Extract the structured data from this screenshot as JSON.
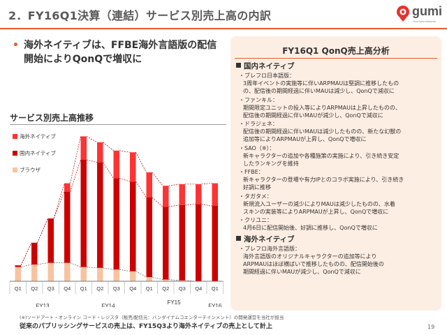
{
  "header": {
    "title": "2．FY16Q1決算（連結）サービス別売上高の内訳",
    "logo_text": "gumi",
    "logo_tagline": "Your New Network"
  },
  "headline": {
    "bullet": "•",
    "text": "海外ネイティブは、FFBE海外言語版の配信開始によりQonQで増収に"
  },
  "chart_title": "サービス別売上高推移",
  "chart_data": {
    "type": "bar",
    "stacked": true,
    "categories": [
      "Q1",
      "Q2",
      "Q3",
      "Q4",
      "Q1",
      "Q2",
      "Q3",
      "Q4",
      "Q1",
      "Q2",
      "Q3",
      "Q4",
      "Q1"
    ],
    "fiscal_years": [
      {
        "label": "FY13",
        "span": 4
      },
      {
        "label": "FY14",
        "span": 4
      },
      {
        "label": "FY15",
        "span": 4
      },
      {
        "label": "FY16",
        "span": 1
      }
    ],
    "series": [
      {
        "name": "ブラウザ",
        "color": "#f8c3a1",
        "values": [
          17,
          20,
          22,
          22,
          17,
          16,
          14,
          12,
          5,
          2,
          1,
          0,
          0
        ]
      },
      {
        "name": "国内ネイティブ",
        "color": "#cc0000",
        "values": [
          2,
          26,
          53,
          85,
          128,
          126,
          109,
          107,
          95,
          87,
          90,
          92,
          90
        ]
      },
      {
        "name": "海外ネイティブ",
        "color": "#ff3333",
        "values": [
          0,
          0,
          0,
          10,
          28,
          24,
          33,
          35,
          30,
          25,
          25,
          24,
          27
        ]
      }
    ],
    "legend_position": "top-left",
    "grid": false
  },
  "panel": {
    "title": "FY16Q1 QonQ売上高分析",
    "domestic_title": "国内ネイティブ",
    "domestic_items": [
      {
        "name": "・ブレフロ日本語版：",
        "lines": [
          "3周年イベントの実施等に伴いARPMAUは堅調に推移したもの",
          "の、配信後の期間経過に伴いMAUは減少し、QonQで減収に"
        ]
      },
      {
        "name": "・ファンキル：",
        "lines": [
          "期間限定ユニットの投入等によりARPMAUは上昇したものの、",
          "配信後の期間経過に伴いMAUが減少し、QonQで減収に"
        ]
      },
      {
        "name": "・ドラジェネ：",
        "lines": [
          "配信後の期間経過に伴いMAUは減少したものの、新たな幻獣の",
          "追加等によりARPMAUが上昇し、QonQで増収に"
        ]
      },
      {
        "name": "・SAO（※）：",
        "lines": [
          "新キャラクターの追加や各種施策の実施により、引き続き安定",
          "したランキングを維持"
        ]
      },
      {
        "name": "・FFBE：",
        "lines": [
          "新キャラクターの登場や有力IPとのコラボ実施により、引き続き",
          "好調に推移"
        ]
      },
      {
        "name": "・タガタメ：",
        "lines": [
          "新規流入ユーザーの減少によりMAUは減少したものの、水着",
          "スキンの実装等によりARPMAUが上昇し、QonQで増収に"
        ]
      },
      {
        "name": "・クリユニ：",
        "lines": [
          "4月6日に配信開始後、好調に推移し、QonQで増収に"
        ]
      }
    ],
    "overseas_title": "海外ネイティブ",
    "overseas_items": [
      {
        "name": "・ブレフロ海外言語版：",
        "lines": [
          "海外言語版のオリジナルキャラクターの追加等により",
          "ARPMAUはほぼ横ばいで推移したものの、配信開始後の",
          "期間経過に伴いMAUが減少し、QonQで減収に"
        ]
      }
    ]
  },
  "footnote": "(※)ソードアート・オンライン コード・レジスタ（販売/配信元：バンダイナムコエンターテインメント）の開発運営を当社が担当",
  "bottom_line": "従来のパブリッシングサービスの売上は、FY15Q3より海外ネイティブの売上として計上",
  "page_number": "19"
}
